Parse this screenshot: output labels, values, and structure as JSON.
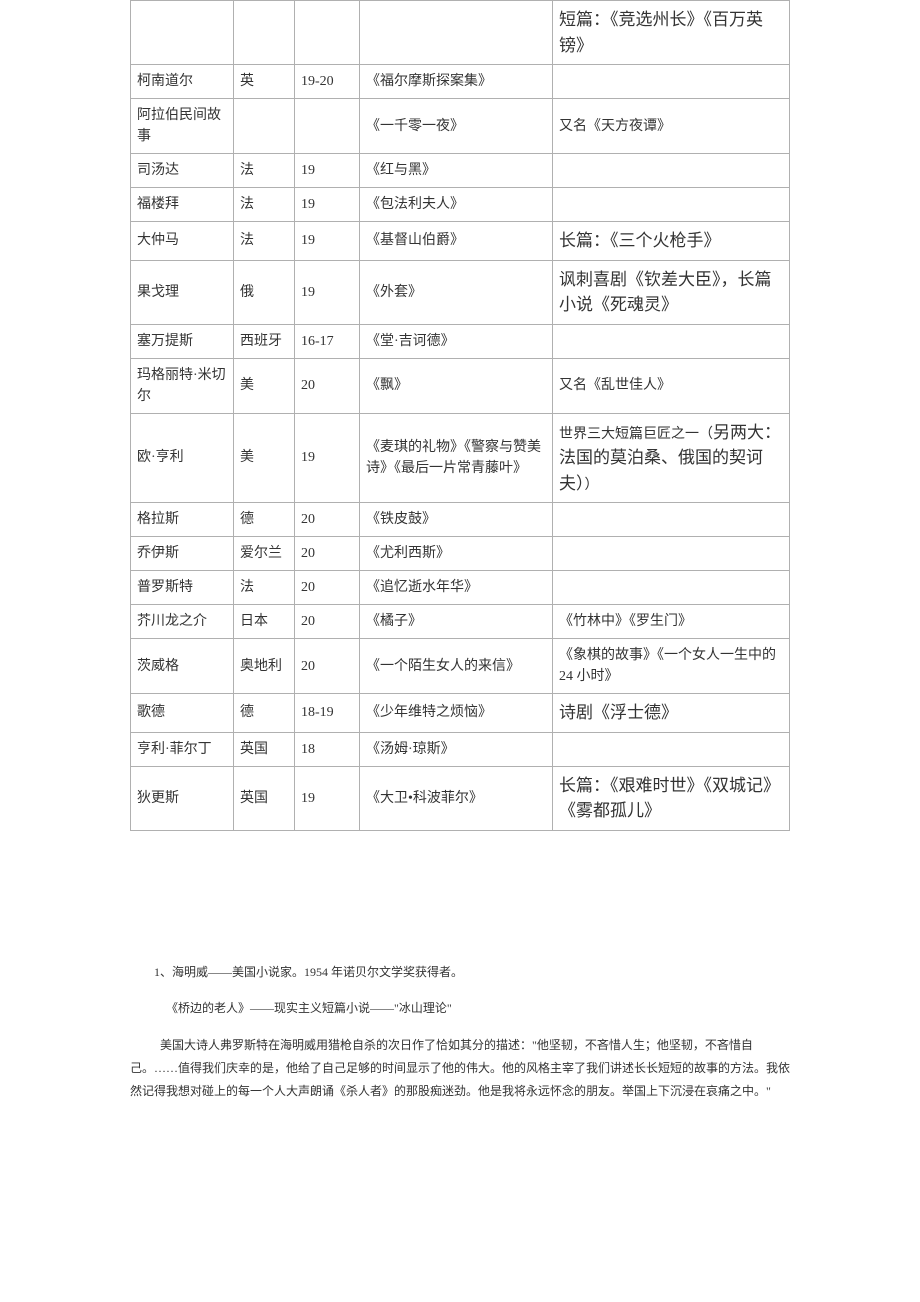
{
  "rows": [
    {
      "author": "",
      "country": "",
      "century": "",
      "works": "",
      "notes": "短篇：《竞选州长》《百万英镑》",
      "notesLarge": true
    },
    {
      "author": "柯南道尔",
      "country": "英",
      "century": "19-20",
      "works": "《福尔摩斯探案集》",
      "notes": ""
    },
    {
      "author": "阿拉伯民间故事",
      "country": "",
      "century": "",
      "works": "《一千零一夜》",
      "notes": "又名《天方夜谭》"
    },
    {
      "author": "司汤达",
      "country": "法",
      "century": "19",
      "works": "《红与黑》",
      "notes": ""
    },
    {
      "author": "福楼拜",
      "country": "法",
      "century": "19",
      "works": "《包法利夫人》",
      "notes": ""
    },
    {
      "author": "大仲马",
      "country": "法",
      "century": "19",
      "works": "《基督山伯爵》",
      "notes": "长篇：《三个火枪手》",
      "notesLarge": true
    },
    {
      "author": "果戈理",
      "country": "俄",
      "century": "19",
      "works": "《外套》",
      "notes": "讽刺喜剧《钦差大臣》，长篇小说《死魂灵》",
      "notesLarge": true
    },
    {
      "author": "塞万提斯",
      "country": "西班牙",
      "century": "16-17",
      "works": "《堂·吉诃德》",
      "notes": ""
    },
    {
      "author": "玛格丽特·米切尔",
      "country": "美",
      "century": "20",
      "works": "《飘》",
      "notes": "又名《乱世佳人》"
    },
    {
      "author": "欧·亨利",
      "country": "美",
      "century": "19",
      "works": "《麦琪的礼物》《警察与赞美诗》《最后一片常青藤叶》",
      "notes": "世界三大短篇巨匠之一（另两大：法国的莫泊桑、俄国的契诃夫））",
      "notesMixed": true
    },
    {
      "author": "格拉斯",
      "country": "德",
      "century": "20",
      "works": "《铁皮鼓》",
      "notes": ""
    },
    {
      "author": "乔伊斯",
      "country": "爱尔兰",
      "century": "20",
      "works": "《尤利西斯》",
      "notes": ""
    },
    {
      "author": "普罗斯特",
      "country": "法",
      "century": "20",
      "works": "《追忆逝水年华》",
      "notes": ""
    },
    {
      "author": "芥川龙之介",
      "country": "日本",
      "century": "20",
      "works": "《橘子》",
      "notes": "《竹林中》《罗生门》"
    },
    {
      "author": "茨威格",
      "country": "奥地利",
      "century": "20",
      "works": "《一个陌生女人的来信》",
      "notes": "《象棋的故事》《一个女人一生中的 24 小时》"
    },
    {
      "author": "歌德",
      "country": "德",
      "century": "18-19",
      "works": "《少年维特之烦恼》",
      "notes": "诗剧《浮士德》",
      "notesLarge": true
    },
    {
      "author": "亨利·菲尔丁",
      "country": "英国",
      "century": "18",
      "works": "《汤姆·琼斯》",
      "notes": ""
    },
    {
      "author": "狄更斯",
      "country": "英国",
      "century": "19",
      "works": "《大卫•科波菲尔》",
      "notes": "长篇：《艰难时世》《双城记》《雾都孤儿》",
      "notesLarge": true
    }
  ],
  "footnotes": {
    "p1": "1、海明威——美国小说家。1954 年诺贝尔文学奖获得者。",
    "p2": "《桥边的老人》——现实主义短篇小说——\"冰山理论\"",
    "p3": "美国大诗人弗罗斯特在海明威用猎枪自杀的次日作了恰如其分的描述：\"他坚韧，不吝惜人生；他坚韧，不吝惜自己。……值得我们庆幸的是，他给了自己足够的时间显示了他的伟大。他的风格主宰了我们讲述长长短短的故事的方法。我依然记得我想对碰上的每一个人大声朗诵《杀人者》的那股痴迷劲。他是我将永远怀念的朋友。举国上下沉浸在哀痛之中。\""
  }
}
